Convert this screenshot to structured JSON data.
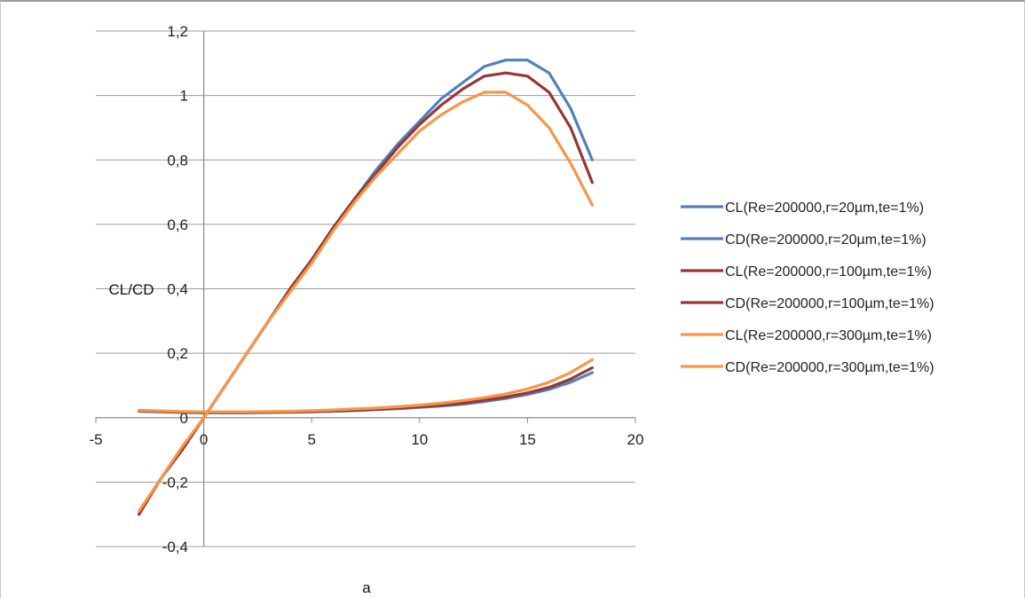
{
  "chart_data": {
    "type": "line",
    "title": "",
    "xlabel": "a",
    "ylabel": "CL/CD",
    "xlim": [
      -5,
      20
    ],
    "ylim": [
      -0.4,
      1.2
    ],
    "x_ticks": [
      "-5",
      "0",
      "5",
      "10",
      "15",
      "20"
    ],
    "y_ticks": [
      "-0,4",
      "-0,2",
      "0",
      "0,2",
      "0,4",
      "0,6",
      "0,8",
      "1",
      "1,2"
    ],
    "grid": "horizontal",
    "legend_position": "right",
    "series": [
      {
        "name": "CL(Re=200000,r=20µm,te=1%)",
        "color": "#4f81bd",
        "x": [
          -3,
          -2,
          -1,
          0,
          1,
          2,
          3,
          4,
          5,
          6,
          7,
          8,
          9,
          10,
          11,
          12,
          13,
          14,
          15,
          16,
          17,
          18
        ],
        "y": [
          -0.3,
          -0.19,
          -0.1,
          0.0,
          0.1,
          0.2,
          0.3,
          0.4,
          0.49,
          0.59,
          0.68,
          0.77,
          0.85,
          0.92,
          0.99,
          1.04,
          1.09,
          1.11,
          1.11,
          1.07,
          0.96,
          0.8
        ]
      },
      {
        "name": "CD(Re=200000,r=20µm,te=1%)",
        "color": "#4f81bd",
        "x": [
          -3,
          -2,
          -1,
          0,
          1,
          2,
          3,
          4,
          5,
          6,
          7,
          8,
          9,
          10,
          11,
          12,
          13,
          14,
          15,
          16,
          17,
          18
        ],
        "y": [
          0.02,
          0.018,
          0.016,
          0.015,
          0.015,
          0.015,
          0.016,
          0.017,
          0.018,
          0.02,
          0.022,
          0.025,
          0.028,
          0.032,
          0.036,
          0.042,
          0.05,
          0.06,
          0.072,
          0.088,
          0.11,
          0.14
        ]
      },
      {
        "name": "CL(Re=200000,r=100µm,te=1%)",
        "color": "#953735",
        "x": [
          -3,
          -2,
          -1,
          0,
          1,
          2,
          3,
          4,
          5,
          6,
          7,
          8,
          9,
          10,
          11,
          12,
          13,
          14,
          15,
          16,
          17,
          18
        ],
        "y": [
          -0.3,
          -0.19,
          -0.1,
          0.0,
          0.1,
          0.2,
          0.3,
          0.4,
          0.49,
          0.59,
          0.68,
          0.76,
          0.84,
          0.91,
          0.97,
          1.02,
          1.06,
          1.07,
          1.06,
          1.01,
          0.9,
          0.73
        ]
      },
      {
        "name": "CD(Re=200000,r=100µm,te=1%)",
        "color": "#953735",
        "x": [
          -3,
          -2,
          -1,
          0,
          1,
          2,
          3,
          4,
          5,
          6,
          7,
          8,
          9,
          10,
          11,
          12,
          13,
          14,
          15,
          16,
          17,
          18
        ],
        "y": [
          0.021,
          0.019,
          0.017,
          0.016,
          0.016,
          0.016,
          0.017,
          0.018,
          0.019,
          0.021,
          0.023,
          0.026,
          0.03,
          0.034,
          0.039,
          0.045,
          0.054,
          0.064,
          0.077,
          0.094,
          0.12,
          0.155
        ]
      },
      {
        "name": "CL(Re=200000,r=300µm,te=1%)",
        "color": "#f79646",
        "x": [
          -3,
          -2,
          -1,
          0,
          1,
          2,
          3,
          4,
          5,
          6,
          7,
          8,
          9,
          10,
          11,
          12,
          13,
          14,
          15,
          16,
          17,
          18
        ],
        "y": [
          -0.29,
          -0.19,
          -0.09,
          0.0,
          0.1,
          0.2,
          0.3,
          0.39,
          0.48,
          0.58,
          0.67,
          0.75,
          0.82,
          0.89,
          0.94,
          0.98,
          1.01,
          1.01,
          0.97,
          0.9,
          0.79,
          0.66
        ]
      },
      {
        "name": "CD(Re=200000,r=300µm,te=1%)",
        "color": "#f79646",
        "x": [
          -3,
          -2,
          -1,
          0,
          1,
          2,
          3,
          4,
          5,
          6,
          7,
          8,
          9,
          10,
          11,
          12,
          13,
          14,
          15,
          16,
          17,
          18
        ],
        "y": [
          0.023,
          0.021,
          0.019,
          0.018,
          0.018,
          0.018,
          0.019,
          0.02,
          0.022,
          0.024,
          0.027,
          0.03,
          0.034,
          0.039,
          0.045,
          0.053,
          0.062,
          0.074,
          0.089,
          0.11,
          0.14,
          0.18
        ]
      }
    ]
  }
}
